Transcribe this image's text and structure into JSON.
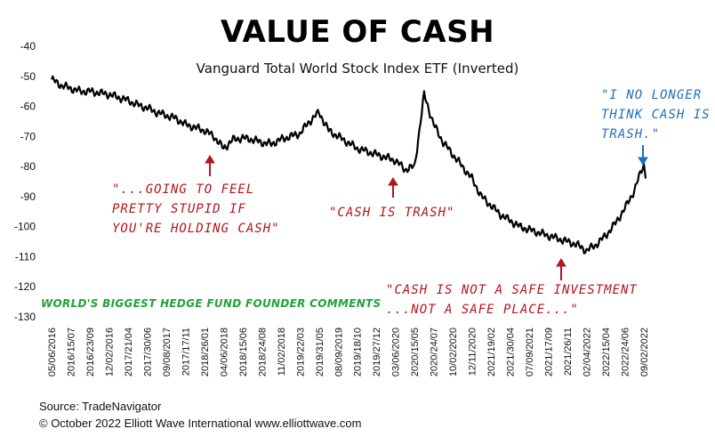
{
  "title": "VALUE OF CASH",
  "subtitle": "Vanguard Total World Stock Index ETF (Inverted)",
  "annotations": {
    "a1": "\"...GOING TO FEEL\nPRETTY STUPID IF\nYOU'RE HOLDING CASH\"",
    "a2": "\"CASH IS TRASH\"",
    "a3": "\"CASH IS NOT A SAFE INVESTMENT\n...NOT A SAFE PLACE...\"",
    "a4": "\"I NO LONGER\nTHINK CASH IS\nTRASH.\"",
    "a5": "WORLD'S BIGGEST HEDGE FUND FOUNDER COMMENTS"
  },
  "footer": {
    "source": "Source: TradeNavigator",
    "copyright": "© October 2022   Elliott Wave International   www.elliottwave.com"
  },
  "colors": {
    "line": "#000000",
    "annotation_red": "#b3161b",
    "annotation_blue": "#1f6fb8",
    "annotation_green": "#1fa33a"
  },
  "chart_data": {
    "type": "line",
    "title": "VALUE OF CASH",
    "subtitle": "Vanguard Total World Stock Index ETF (Inverted)",
    "ylim": [
      -130,
      -40
    ],
    "yticks": [
      -40,
      -50,
      -60,
      -70,
      -80,
      -90,
      -100,
      -110,
      -120,
      -130
    ],
    "grid": false,
    "xtick_labels": [
      "05/06/2016",
      "2016/15/07",
      "2016/23/09",
      "12/02/2016",
      "2017/21/04",
      "2017/30/06",
      "09/08/2017",
      "2017/17/11",
      "2018/26/01",
      "04/06/2018",
      "2018/15/06",
      "2018/24/08",
      "11/02/2018",
      "2019/22/03",
      "2019/31/05",
      "08/09/2019",
      "2019/18/10",
      "2019/27/12",
      "03/06/2020",
      "2020/15/05",
      "2020/24/07",
      "10/02/2020",
      "12/11/2020",
      "2021/19/02",
      "2021/30/04",
      "07/09/2021",
      "2021/17/09",
      "2021/26/11",
      "02/04/2022",
      "2022/15/04",
      "2022/24/06",
      "09/02/2022"
    ],
    "series": [
      {
        "x": [
          0,
          0.5,
          1,
          1.5,
          2,
          2.5,
          3,
          3.5,
          4,
          4.5,
          5,
          5.5,
          6,
          6.5,
          7,
          7.5,
          8,
          8.5,
          9,
          9.5,
          10,
          10.5,
          11,
          11.5,
          12,
          12.5,
          13,
          13.5,
          14,
          14.5,
          15,
          15.5,
          16,
          16.5,
          17,
          17.5,
          18,
          18.5,
          19,
          19.5,
          20,
          20.5,
          21,
          21.5,
          22,
          22.5,
          23,
          23.5,
          24,
          24.5,
          25,
          25.5,
          26,
          26.5,
          27,
          27.5,
          28,
          28.5,
          29,
          29.5,
          30,
          30.5,
          31
        ],
        "values": [
          -51,
          -53,
          -54,
          -55,
          -55,
          -55.5,
          -56,
          -57,
          -58,
          -59.5,
          -60.5,
          -62,
          -63,
          -64,
          -66,
          -67,
          -68,
          -70,
          -74,
          -71,
          -70.5,
          -71,
          -72,
          -72.5,
          -71,
          -70,
          -69,
          -65,
          -62,
          -68,
          -70,
          -72,
          -74,
          -75,
          -76,
          -77,
          -78,
          -81,
          -80,
          -56,
          -66,
          -72,
          -76,
          -80,
          -84,
          -90,
          -93,
          -96,
          -98,
          -100,
          -101,
          -102,
          -103,
          -104,
          -105,
          -106,
          -108,
          -106,
          -103,
          -99,
          -94,
          -88,
          -79
        ]
      }
    ]
  }
}
